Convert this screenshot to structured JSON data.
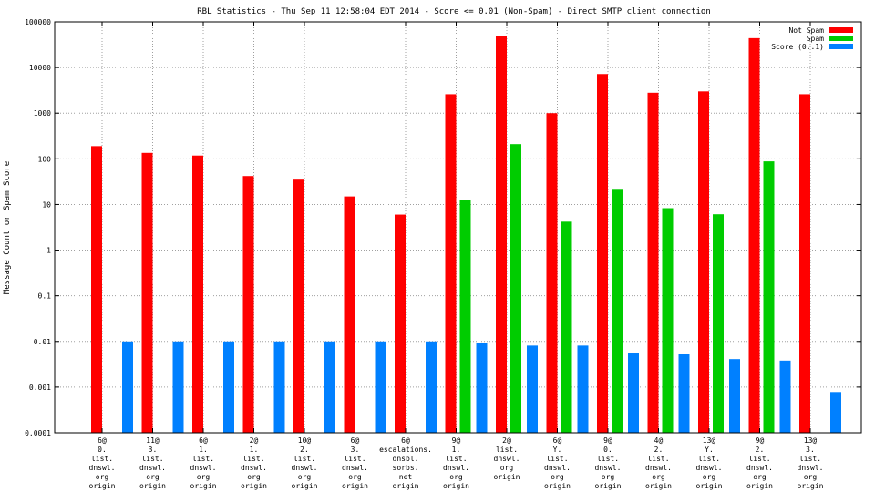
{
  "chart_data": {
    "type": "bar",
    "title": "RBL Statistics - Thu Sep 11 12:58:04 EDT 2014 - Score <= 0.01 (Non-Spam) - Direct SMTP client connection",
    "xlabel": "",
    "ylabel": "Message Count or Spam Score",
    "yscale": "log",
    "ylim": [
      0.0001,
      100000
    ],
    "yticks": [
      "0.0001",
      "0.001",
      "0.01",
      "0.1",
      "1",
      "10",
      "100",
      "1000",
      "10000",
      "100000"
    ],
    "grid": true,
    "legend_position": "top-right",
    "categories": [
      [
        "6@",
        "0.",
        "list.",
        "dnswl.",
        "org",
        "origin"
      ],
      [
        "11@",
        "3.",
        "list.",
        "dnswl.",
        "org",
        "origin"
      ],
      [
        "6@",
        "1.",
        "list.",
        "dnswl.",
        "org",
        "origin"
      ],
      [
        "2@",
        "1.",
        "list.",
        "dnswl.",
        "org",
        "origin"
      ],
      [
        "10@",
        "2.",
        "list.",
        "dnswl.",
        "org",
        "origin"
      ],
      [
        "6@",
        "3.",
        "list.",
        "dnswl.",
        "org",
        "origin"
      ],
      [
        "6@",
        "escalations.",
        "dnsbl.",
        "sorbs.",
        "net",
        "origin"
      ],
      [
        "9@",
        "1.",
        "list.",
        "dnswl.",
        "org",
        "origin"
      ],
      [
        "2@",
        "list.",
        "dnswl.",
        "org",
        "origin"
      ],
      [
        "6@",
        "Y.",
        "list.",
        "dnswl.",
        "org",
        "origin"
      ],
      [
        "9@",
        "0.",
        "list.",
        "dnswl.",
        "org",
        "origin"
      ],
      [
        "4@",
        "2.",
        "list.",
        "dnswl.",
        "org",
        "origin"
      ],
      [
        "13@",
        "Y.",
        "list.",
        "dnswl.",
        "org",
        "origin"
      ],
      [
        "9@",
        "2.",
        "list.",
        "dnswl.",
        "org",
        "origin"
      ],
      [
        "13@",
        "3.",
        "list.",
        "dnswl.",
        "org",
        "origin"
      ]
    ],
    "series": [
      {
        "name": "Not Spam",
        "color": "#ff0000",
        "values": [
          190,
          135,
          118,
          42,
          35,
          15,
          6,
          2600,
          48000,
          1000,
          7200,
          2800,
          3000,
          44000,
          2600
        ]
      },
      {
        "name": "Spam",
        "color": "#00cc00",
        "values": [
          null,
          null,
          null,
          null,
          null,
          null,
          null,
          12.5,
          210,
          4.2,
          22,
          8.3,
          6.1,
          88,
          null
        ]
      },
      {
        "name": "Score (0..1)",
        "color": "#0080ff",
        "values": [
          0.01,
          0.01,
          0.01,
          0.01,
          0.01,
          0.01,
          0.01,
          0.0092,
          0.0081,
          0.0081,
          0.0057,
          0.0054,
          0.0041,
          0.0038,
          0.00078
        ]
      }
    ]
  }
}
